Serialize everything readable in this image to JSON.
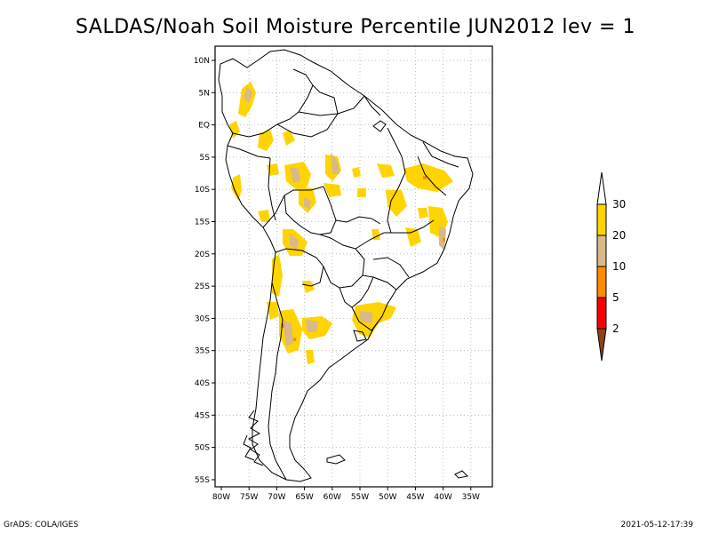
{
  "title": "SALDAS/Noah Soil Moisture Percentile JUN2012 lev = 1",
  "map": {
    "lat_labels": [
      "10N",
      "5N",
      "EQ",
      "5S",
      "10S",
      "15S",
      "20S",
      "25S",
      "30S",
      "35S",
      "40S",
      "45S",
      "50S",
      "55S"
    ],
    "lon_labels": [
      "80W",
      "75W",
      "70W",
      "65W",
      "60W",
      "55W",
      "50W",
      "45W",
      "40W",
      "35W"
    ],
    "lat_range": [
      10,
      -55
    ],
    "lon_range": [
      -80,
      -33
    ]
  },
  "legend": {
    "labels": [
      "30",
      "20",
      "10",
      "5",
      "2"
    ],
    "colors": {
      "top_arrow": "#ffffff",
      "c30": "#ffd400",
      "c20": "#d9b889",
      "c10": "#ff8c00",
      "c5": "#ff0000",
      "bottom_arrow": "#8b4513"
    }
  },
  "footer": {
    "left": "GrADS: COLA/IGES",
    "right": "2021-05-12-17:39"
  }
}
